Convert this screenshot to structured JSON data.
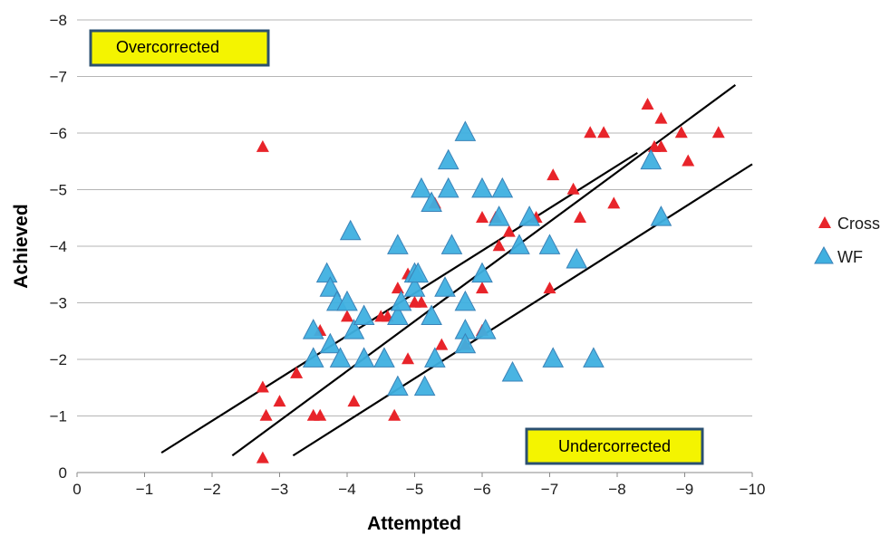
{
  "chart_data": {
    "type": "scatter",
    "xlabel": "Attempted",
    "ylabel": "Achieved",
    "xlim": [
      0,
      -10
    ],
    "ylim": [
      0,
      -8
    ],
    "x_ticks": [
      "0",
      "−1",
      "−2",
      "−3",
      "−4",
      "−5",
      "−6",
      "−7",
      "−8",
      "−9",
      "−10"
    ],
    "y_ticks": [
      "0",
      "−1",
      "−2",
      "−3",
      "−4",
      "−5",
      "−6",
      "−7",
      "−8"
    ],
    "x_tick_values": [
      0,
      -1,
      -2,
      -3,
      -4,
      -5,
      -6,
      -7,
      -8,
      -9,
      -10
    ],
    "y_tick_values": [
      0,
      -1,
      -2,
      -3,
      -4,
      -5,
      -6,
      -7,
      -8
    ],
    "grid": true,
    "legend_position": "right",
    "annotations": {
      "overcorrected": "Overcorrected",
      "undercorrected": "Undercorrected"
    },
    "colors": {
      "cross": "#e8242a",
      "wf": "#3fb0e0",
      "wf_stroke": "#3a82b8",
      "box_fill": "#f4f400",
      "box_border": "#2b5070",
      "lines": "#000000"
    },
    "series": [
      {
        "name": "Cross",
        "marker": "triangle-small",
        "points": [
          [
            -2.75,
            -5.75
          ],
          [
            -2.75,
            -0.25
          ],
          [
            -2.75,
            -1.5
          ],
          [
            -2.8,
            -1.0
          ],
          [
            -3.0,
            -1.25
          ],
          [
            -3.25,
            -1.75
          ],
          [
            -3.5,
            -1.0
          ],
          [
            -3.6,
            -1.0
          ],
          [
            -3.6,
            -2.5
          ],
          [
            -4.0,
            -2.75
          ],
          [
            -4.1,
            -1.25
          ],
          [
            -4.5,
            -2.75
          ],
          [
            -4.6,
            -2.75
          ],
          [
            -4.7,
            -1.0
          ],
          [
            -4.75,
            -3.25
          ],
          [
            -4.9,
            -2.0
          ],
          [
            -4.9,
            -3.5
          ],
          [
            -5.0,
            -3.0
          ],
          [
            -5.1,
            -3.0
          ],
          [
            -5.3,
            -4.75
          ],
          [
            -5.4,
            -2.25
          ],
          [
            -5.75,
            -2.25
          ],
          [
            -6.0,
            -2.5
          ],
          [
            -6.0,
            -3.25
          ],
          [
            -6.0,
            -4.5
          ],
          [
            -6.2,
            -4.5
          ],
          [
            -6.25,
            -4.0
          ],
          [
            -6.4,
            -4.25
          ],
          [
            -6.8,
            -4.5
          ],
          [
            -7.0,
            -3.25
          ],
          [
            -7.05,
            -5.25
          ],
          [
            -7.35,
            -5.0
          ],
          [
            -7.45,
            -4.5
          ],
          [
            -7.6,
            -6.0
          ],
          [
            -7.8,
            -6.0
          ],
          [
            -7.95,
            -4.75
          ],
          [
            -8.45,
            -6.5
          ],
          [
            -8.55,
            -5.75
          ],
          [
            -8.65,
            -5.75
          ],
          [
            -8.65,
            -6.25
          ],
          [
            -8.95,
            -6.0
          ],
          [
            -9.05,
            -5.5
          ],
          [
            -9.5,
            -6.0
          ]
        ]
      },
      {
        "name": "WF",
        "marker": "triangle-large",
        "points": [
          [
            -3.5,
            -2.5
          ],
          [
            -3.5,
            -2.0
          ],
          [
            -3.7,
            -3.5
          ],
          [
            -3.75,
            -3.25
          ],
          [
            -3.75,
            -2.25
          ],
          [
            -3.85,
            -3.0
          ],
          [
            -3.9,
            -2.0
          ],
          [
            -4.0,
            -3.0
          ],
          [
            -4.05,
            -4.25
          ],
          [
            -4.1,
            -2.5
          ],
          [
            -4.25,
            -2.75
          ],
          [
            -4.25,
            -2.0
          ],
          [
            -4.55,
            -2.0
          ],
          [
            -4.75,
            -4.0
          ],
          [
            -4.75,
            -2.75
          ],
          [
            -4.75,
            -1.5
          ],
          [
            -4.8,
            -3.0
          ],
          [
            -5.0,
            -3.5
          ],
          [
            -5.0,
            -3.25
          ],
          [
            -5.05,
            -3.5
          ],
          [
            -5.1,
            -5.0
          ],
          [
            -5.15,
            -1.5
          ],
          [
            -5.25,
            -4.75
          ],
          [
            -5.25,
            -2.75
          ],
          [
            -5.3,
            -2.0
          ],
          [
            -5.45,
            -3.25
          ],
          [
            -5.5,
            -5.5
          ],
          [
            -5.5,
            -5.0
          ],
          [
            -5.55,
            -4.0
          ],
          [
            -5.75,
            -6.0
          ],
          [
            -5.75,
            -3.0
          ],
          [
            -5.75,
            -2.5
          ],
          [
            -5.75,
            -2.25
          ],
          [
            -6.0,
            -3.5
          ],
          [
            -6.0,
            -5.0
          ],
          [
            -6.05,
            -2.5
          ],
          [
            -6.25,
            -4.5
          ],
          [
            -6.3,
            -5.0
          ],
          [
            -6.45,
            -1.75
          ],
          [
            -6.55,
            -4.0
          ],
          [
            -6.7,
            -4.5
          ],
          [
            -7.0,
            -4.0
          ],
          [
            -7.05,
            -2.0
          ],
          [
            -7.4,
            -3.75
          ],
          [
            -7.65,
            -2.0
          ],
          [
            -8.5,
            -5.5
          ],
          [
            -8.65,
            -4.5
          ]
        ]
      }
    ],
    "lines": [
      {
        "from": [
          -1.25,
          -0.35
        ],
        "to": [
          -8.3,
          -5.65
        ]
      },
      {
        "from": [
          -2.3,
          -0.3
        ],
        "to": [
          -9.75,
          -6.85
        ]
      },
      {
        "from": [
          -3.2,
          -0.3
        ],
        "to": [
          -10.0,
          -5.45
        ]
      }
    ]
  }
}
